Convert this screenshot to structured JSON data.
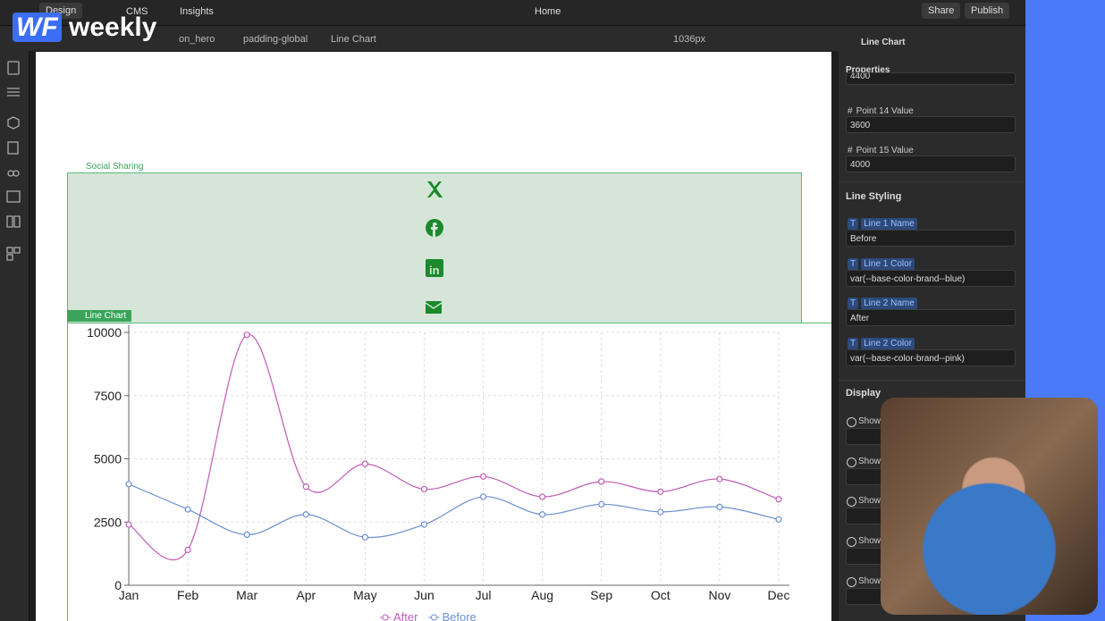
{
  "topbar": {
    "design": "Design",
    "cms": "CMS",
    "insights": "Insights",
    "page": "Home",
    "share": "Share",
    "publish": "Publish"
  },
  "logo": {
    "mark": "WF",
    "text": "weekly"
  },
  "breadcrumb": [
    "on_hero",
    "padding-global",
    "Line Chart"
  ],
  "breakpoint": "1036px",
  "canvas": {
    "social_label": "Social Sharing",
    "chart_label": "Line Chart"
  },
  "panel": {
    "title": "Line Chart",
    "tab": "Properties",
    "partial_value": "4400",
    "points": [
      {
        "icon": "#",
        "label": "Point 14 Value",
        "value": "3600"
      },
      {
        "icon": "#",
        "label": "Point 15 Value",
        "value": "4000"
      }
    ],
    "section": "Line Styling",
    "styling": [
      {
        "icon": "T",
        "label": "Line 1 Name",
        "value": "Before"
      },
      {
        "icon": "T",
        "label": "Line 1 Color",
        "value": "var(--base-color-brand--blue)"
      },
      {
        "icon": "T",
        "label": "Line 2 Name",
        "value": "After"
      },
      {
        "icon": "T",
        "label": "Line 2 Color",
        "value": "var(--base-color-brand--pink)"
      }
    ],
    "display": "Display",
    "show": [
      "Show",
      "Show",
      "Show",
      "Show",
      "Show"
    ]
  },
  "chart_data": {
    "type": "line",
    "categories": [
      "Jan",
      "Feb",
      "Mar",
      "Apr",
      "May",
      "Jun",
      "Jul",
      "Aug",
      "Sep",
      "Oct",
      "Nov",
      "Dec"
    ],
    "series": [
      {
        "name": "After",
        "color": "#c05bb5",
        "values": [
          2400,
          1400,
          9900,
          3900,
          4800,
          3800,
          4300,
          3500,
          4100,
          3700,
          4200,
          3400
        ]
      },
      {
        "name": "Before",
        "color": "#6b8fd0",
        "values": [
          4000,
          3000,
          2000,
          2800,
          1900,
          2400,
          3500,
          2800,
          3200,
          2900,
          3100,
          2600
        ]
      }
    ],
    "ylim": [
      0,
      10000
    ],
    "yticks": [
      0,
      2500,
      5000,
      7500,
      10000
    ],
    "grid": true,
    "legend": "bottom"
  }
}
